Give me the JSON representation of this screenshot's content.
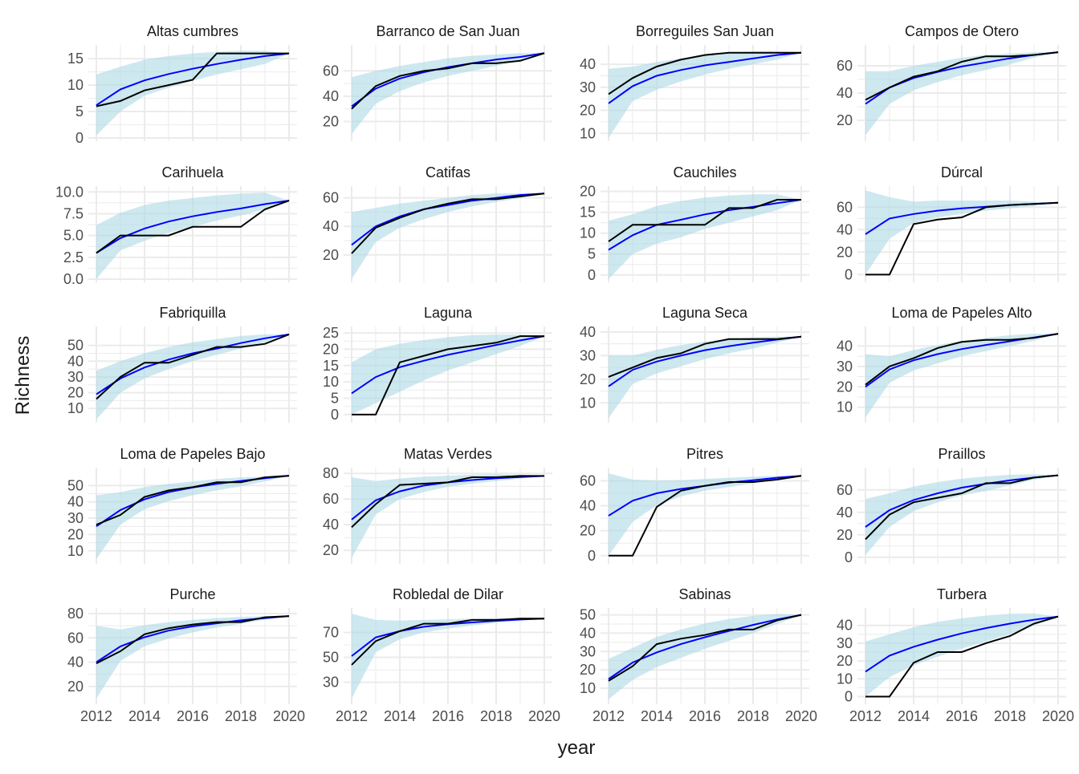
{
  "chart_data": {
    "type": "line",
    "xlabel": "year",
    "ylabel": "Richness",
    "x_ticks": [
      2012,
      2014,
      2016,
      2018,
      2020
    ],
    "x": [
      2012,
      2013,
      2014,
      2015,
      2016,
      2017,
      2018,
      2019,
      2020
    ],
    "colors": {
      "observed": "#000000",
      "fitted": "#0000ff",
      "band": "#add8e6",
      "grid": "#ebebeb"
    },
    "panels": [
      {
        "title": "Altas cumbres",
        "ylim": [
          0,
          17
        ],
        "yticks": [
          0,
          5,
          10,
          15
        ],
        "observed": [
          6,
          7,
          9,
          10,
          11,
          16,
          16,
          16,
          16
        ],
        "fitted": [
          6.2,
          9.2,
          10.9,
          12.1,
          13.1,
          14,
          14.8,
          15.5,
          16
        ],
        "band_low": [
          0.5,
          5,
          8,
          9.5,
          10.8,
          12,
          13,
          14,
          16
        ],
        "band_high": [
          12,
          13.5,
          14.8,
          15.5,
          16,
          16.3,
          16.5,
          16.5,
          16
        ]
      },
      {
        "title": "Barranco de San Juan",
        "ylim": [
          7,
          78
        ],
        "yticks": [
          20,
          40,
          60
        ],
        "observed": [
          30,
          48,
          56,
          60,
          62,
          66,
          66,
          68,
          74
        ],
        "fitted": [
          32,
          46,
          54,
          59,
          63,
          66,
          69,
          71,
          74
        ],
        "band_low": [
          10,
          34,
          44,
          51,
          56,
          60,
          64,
          68,
          73
        ],
        "band_high": [
          55,
          60,
          64,
          67,
          70,
          72,
          73,
          74,
          74
        ]
      },
      {
        "title": "Borreguiles San Juan",
        "ylim": [
          8,
          47
        ],
        "yticks": [
          10,
          20,
          30,
          40
        ],
        "observed": [
          27,
          34,
          39,
          42,
          44,
          45,
          45,
          45,
          45
        ],
        "fitted": [
          23,
          30.5,
          35,
          37.5,
          39.5,
          41,
          42.5,
          44,
          45
        ],
        "band_low": [
          8,
          24,
          29,
          32.5,
          35.5,
          38,
          40,
          42,
          45
        ],
        "band_high": [
          38,
          39,
          41,
          42.5,
          44,
          45,
          45.5,
          45.5,
          45
        ]
      },
      {
        "title": "Campos de Otero",
        "ylim": [
          7,
          73
        ],
        "yticks": [
          20,
          40,
          60
        ],
        "observed": [
          35,
          44,
          52,
          56,
          63,
          67,
          67,
          68,
          70
        ],
        "fitted": [
          32,
          44,
          51,
          55.5,
          59.5,
          62.5,
          65.5,
          68,
          70
        ],
        "band_low": [
          9,
          32,
          42,
          48,
          53,
          57,
          61,
          66,
          70
        ],
        "band_high": [
          56,
          56,
          60,
          63,
          66,
          68,
          69,
          70,
          70
        ]
      },
      {
        "title": "Carihuela",
        "ylim": [
          0,
          10.3
        ],
        "yticks": [
          0,
          2.5,
          5,
          7.5,
          10
        ],
        "ytick_labels": [
          "0.0",
          "2.5",
          "5.0",
          "7.5",
          "10.0"
        ],
        "observed": [
          3,
          5,
          5,
          5,
          6,
          6,
          6,
          8,
          9
        ],
        "fitted": [
          3,
          4.7,
          5.8,
          6.6,
          7.2,
          7.7,
          8.1,
          8.6,
          9
        ],
        "band_low": [
          0,
          3.3,
          4.4,
          5.3,
          6,
          6.7,
          7.3,
          8,
          9
        ],
        "band_high": [
          6.2,
          7.6,
          8.5,
          9,
          9.3,
          9.6,
          9.8,
          9.9,
          9
        ]
      },
      {
        "title": "Catifas",
        "ylim": [
          3,
          66
        ],
        "yticks": [
          20,
          40,
          60
        ],
        "observed": [
          21,
          39,
          46,
          52,
          56,
          59,
          59,
          61,
          63
        ],
        "fitted": [
          27,
          40,
          47,
          52,
          55,
          58,
          60,
          62,
          63
        ],
        "band_low": [
          3,
          29,
          39,
          45,
          50,
          54,
          57,
          60,
          63
        ],
        "band_high": [
          50,
          53,
          56,
          58,
          60,
          62,
          63,
          63,
          63
        ]
      },
      {
        "title": "Cauchiles",
        "ylim": [
          -1,
          20.5
        ],
        "yticks": [
          0,
          5,
          10,
          15,
          20
        ],
        "observed": [
          8,
          12,
          12,
          12,
          12,
          16,
          16,
          18,
          18
        ],
        "fitted": [
          6,
          9.5,
          12,
          13.2,
          14.5,
          15.5,
          16.3,
          17.2,
          18
        ],
        "band_low": [
          -1,
          5,
          7.5,
          9,
          11,
          12.5,
          14,
          15.5,
          18
        ],
        "band_high": [
          13,
          14.5,
          16.5,
          17.7,
          18.5,
          19,
          19.3,
          19.3,
          18
        ]
      },
      {
        "title": "Dúrcal",
        "ylim": [
          -4,
          76
        ],
        "yticks": [
          0,
          20,
          40,
          60
        ],
        "observed": [
          0,
          0,
          45,
          49,
          51,
          60,
          62,
          63,
          64
        ],
        "fitted": [
          36,
          50,
          54,
          57,
          59,
          60.5,
          62,
          63,
          64
        ],
        "band_low": [
          0,
          32,
          46,
          51,
          54,
          57,
          59,
          61,
          64
        ],
        "band_high": [
          75,
          69,
          65,
          66,
          66,
          66,
          66,
          65,
          64
        ]
      },
      {
        "title": "Fabriquilla",
        "ylim": [
          3,
          60
        ],
        "yticks": [
          10,
          20,
          30,
          40,
          50
        ],
        "observed": [
          16,
          30,
          39,
          39,
          44,
          49,
          49,
          51,
          57
        ],
        "fitted": [
          19,
          29,
          36,
          41,
          45,
          48,
          51.5,
          54.5,
          57
        ],
        "band_low": [
          3,
          20,
          29,
          35,
          40,
          44,
          48,
          52,
          57
        ],
        "band_high": [
          34,
          40,
          45,
          49,
          52,
          54,
          56,
          57,
          57
        ]
      },
      {
        "title": "Laguna",
        "ylim": [
          -1.5,
          26
        ],
        "yticks": [
          0,
          5,
          10,
          15,
          20,
          25
        ],
        "observed": [
          0,
          0,
          16,
          18,
          20,
          21,
          22,
          24,
          24
        ],
        "fitted": [
          6.5,
          11.5,
          14.5,
          16.5,
          18.3,
          19.8,
          21.3,
          22.7,
          24
        ],
        "band_low": [
          0,
          3.5,
          7,
          10.5,
          13.5,
          16,
          18.5,
          21,
          24
        ],
        "band_high": [
          16,
          20,
          21.7,
          22.8,
          23.7,
          24.3,
          24.5,
          24.5,
          24
        ]
      },
      {
        "title": "Laguna Seca",
        "ylim": [
          3,
          41
        ],
        "yticks": [
          10,
          20,
          30,
          40
        ],
        "observed": [
          21,
          25,
          29,
          31,
          35,
          37,
          37,
          37,
          38
        ],
        "fitted": [
          17,
          24,
          27.5,
          30,
          32.3,
          34,
          35.5,
          36.8,
          38
        ],
        "band_low": [
          3.5,
          18,
          22.5,
          25.5,
          28.5,
          31,
          33,
          35.5,
          38
        ],
        "band_high": [
          30,
          30,
          32.5,
          34.5,
          36,
          37,
          37.8,
          38,
          38
        ]
      },
      {
        "title": "Loma de Papeles Alto",
        "ylim": [
          4,
          48
        ],
        "yticks": [
          10,
          20,
          30,
          40
        ],
        "observed": [
          21,
          30,
          34,
          39,
          42,
          43,
          43,
          44,
          46
        ],
        "fitted": [
          20,
          28.5,
          33,
          36,
          38.5,
          40.5,
          42.3,
          44.2,
          46
        ],
        "band_low": [
          5,
          22,
          28,
          31.5,
          35,
          37.5,
          40,
          42.5,
          46
        ],
        "band_high": [
          36,
          35,
          38,
          40.5,
          42.5,
          44,
          45.3,
          46,
          46
        ]
      },
      {
        "title": "Loma de Papeles Bajo",
        "ylim": [
          4,
          59
        ],
        "yticks": [
          10,
          20,
          30,
          40,
          50
        ],
        "observed": [
          26,
          32,
          43,
          47,
          49,
          52,
          52,
          55,
          56
        ],
        "fitted": [
          25,
          35,
          41.5,
          46,
          48.8,
          51,
          52.8,
          54.5,
          56
        ],
        "band_low": [
          5,
          26,
          35.5,
          40.5,
          44,
          47,
          49.5,
          52.5,
          56
        ],
        "band_high": [
          44,
          46,
          49,
          51,
          52.5,
          54,
          55,
          55.5,
          56
        ]
      },
      {
        "title": "Matas Verdes",
        "ylim": [
          12,
          82
        ],
        "yticks": [
          20,
          40,
          60,
          80
        ],
        "observed": [
          38,
          56,
          71,
          72,
          73,
          77,
          77,
          78,
          78
        ],
        "fitted": [
          44,
          59,
          66,
          70.5,
          73,
          74.8,
          76.2,
          77.2,
          78
        ],
        "band_low": [
          14,
          48,
          60,
          65.5,
          69.5,
          72,
          74,
          76,
          78
        ],
        "band_high": [
          77,
          74,
          76,
          77.5,
          78.2,
          79,
          79.3,
          79,
          78
        ]
      },
      {
        "title": "Pitres",
        "ylim": [
          -4,
          68
        ],
        "yticks": [
          0,
          20,
          40,
          60
        ],
        "observed": [
          0,
          0,
          39,
          52,
          56,
          59,
          59,
          61,
          64
        ],
        "fitted": [
          32,
          44,
          50,
          53.5,
          56,
          58.5,
          60.5,
          62.5,
          64
        ],
        "band_low": [
          0,
          27,
          40.5,
          47.5,
          52,
          55,
          58,
          61,
          64
        ],
        "band_high": [
          66,
          61,
          60,
          60.5,
          61.5,
          62.5,
          63.3,
          64,
          64
        ]
      },
      {
        "title": "Praillos",
        "ylim": [
          -3,
          77
        ],
        "yticks": [
          0,
          20,
          40,
          60
        ],
        "observed": [
          16,
          38,
          49,
          53,
          57,
          66,
          66,
          71,
          73
        ],
        "fitted": [
          27,
          42,
          51,
          57,
          62,
          65.5,
          68.5,
          71,
          73
        ],
        "band_low": [
          2,
          27,
          41,
          49,
          55,
          59,
          64,
          69,
          73
        ],
        "band_high": [
          52,
          57,
          63,
          67,
          70,
          72,
          73.5,
          74,
          73
        ]
      },
      {
        "title": "Purche",
        "ylim": [
          8,
          82
        ],
        "yticks": [
          20,
          40,
          60,
          80
        ],
        "observed": [
          39,
          49,
          63,
          68,
          71,
          73,
          73,
          77,
          78
        ],
        "fitted": [
          40,
          53,
          60.5,
          66,
          69.5,
          72,
          74.5,
          76.3,
          78
        ],
        "band_low": [
          10,
          41,
          53,
          59.5,
          64.5,
          68.5,
          71.5,
          75,
          78
        ],
        "band_high": [
          70,
          67,
          70.5,
          73,
          74.8,
          76.3,
          77.3,
          78,
          78
        ]
      },
      {
        "title": "Robledal de Dilar",
        "ylim": [
          15,
          87
        ],
        "yticks": [
          30,
          50,
          70
        ],
        "observed": [
          44,
          63,
          71,
          77,
          77,
          80,
          80,
          81,
          81
        ],
        "fitted": [
          51,
          66,
          71,
          74.5,
          76.5,
          78,
          79.3,
          80.3,
          81
        ],
        "band_low": [
          17,
          54,
          64.5,
          70,
          73,
          75.5,
          77.5,
          79.5,
          81
        ],
        "band_high": [
          85,
          80,
          79.5,
          80,
          80.5,
          81,
          81.3,
          81.3,
          81
        ]
      },
      {
        "title": "Sabinas",
        "ylim": [
          3,
          52
        ],
        "yticks": [
          10,
          20,
          30,
          40,
          50
        ],
        "observed": [
          14,
          22,
          34,
          37,
          39,
          42,
          42,
          47,
          50
        ],
        "fitted": [
          15,
          24,
          29.5,
          34,
          37.8,
          41.2,
          44.5,
          47.5,
          50
        ],
        "band_low": [
          4,
          14.5,
          21.5,
          26.5,
          31.5,
          35.8,
          40,
          45,
          50
        ],
        "band_high": [
          26,
          32,
          38,
          42,
          45.3,
          47.8,
          49.5,
          50.5,
          50
        ]
      },
      {
        "title": "Turbera",
        "ylim": [
          -2.5,
          48
        ],
        "yticks": [
          0,
          10,
          20,
          30,
          40
        ],
        "observed": [
          0,
          0,
          19,
          25,
          25,
          30,
          34,
          41,
          45
        ],
        "fitted": [
          14,
          23,
          28,
          32,
          35.5,
          38.5,
          41,
          43.2,
          45
        ],
        "band_low": [
          0,
          11,
          17.5,
          22.5,
          27,
          31,
          35,
          40,
          45
        ],
        "band_high": [
          31,
          35,
          39,
          42,
          44,
          45.5,
          46.5,
          46.8,
          45
        ]
      }
    ]
  }
}
